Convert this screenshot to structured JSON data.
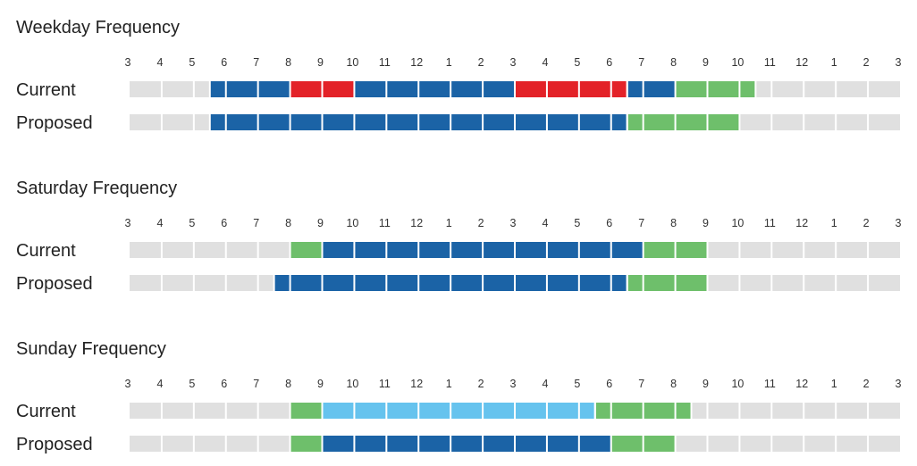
{
  "chart_data": {
    "type": "timeline",
    "axis": {
      "tick_labels": [
        "3",
        "4",
        "5",
        "6",
        "7",
        "8",
        "9",
        "10",
        "11",
        "12",
        "1",
        "2",
        "3",
        "4",
        "5",
        "6",
        "7",
        "8",
        "9",
        "10",
        "11",
        "12",
        "1",
        "2",
        "3"
      ],
      "start_hour": 3,
      "end_hour": 27
    },
    "legend": [
      {
        "color": "#e0e0e0",
        "key": "no-service"
      },
      {
        "color": "#1b63a6",
        "key": "frequent"
      },
      {
        "color": "#e32228",
        "key": "peak"
      },
      {
        "color": "#6ebf6b",
        "key": "less-frequent"
      },
      {
        "color": "#66c3ee",
        "key": "lighter-frequent"
      }
    ],
    "panels": [
      {
        "title": "Weekday Frequency",
        "rows": [
          {
            "label": "Current",
            "segments": [
              {
                "start": 5.5,
                "end": 8,
                "color": "#1b63a6"
              },
              {
                "start": 8,
                "end": 10,
                "color": "#e32228"
              },
              {
                "start": 10,
                "end": 15,
                "color": "#1b63a6"
              },
              {
                "start": 15,
                "end": 18.5,
                "color": "#e32228"
              },
              {
                "start": 18.5,
                "end": 20,
                "color": "#1b63a6"
              },
              {
                "start": 20,
                "end": 22.5,
                "color": "#6ebf6b"
              }
            ]
          },
          {
            "label": "Proposed",
            "segments": [
              {
                "start": 5.5,
                "end": 18.5,
                "color": "#1b63a6"
              },
              {
                "start": 18.5,
                "end": 22,
                "color": "#6ebf6b"
              }
            ]
          }
        ]
      },
      {
        "title": "Saturday Frequency",
        "rows": [
          {
            "label": "Current",
            "segments": [
              {
                "start": 8,
                "end": 9,
                "color": "#6ebf6b"
              },
              {
                "start": 9,
                "end": 19,
                "color": "#1b63a6"
              },
              {
                "start": 19,
                "end": 21,
                "color": "#6ebf6b"
              }
            ]
          },
          {
            "label": "Proposed",
            "segments": [
              {
                "start": 7.5,
                "end": 18.5,
                "color": "#1b63a6"
              },
              {
                "start": 18.5,
                "end": 21,
                "color": "#6ebf6b"
              }
            ]
          }
        ]
      },
      {
        "title": "Sunday Frequency",
        "rows": [
          {
            "label": "Current",
            "segments": [
              {
                "start": 8,
                "end": 9,
                "color": "#6ebf6b"
              },
              {
                "start": 9,
                "end": 17.5,
                "color": "#66c3ee"
              },
              {
                "start": 17.5,
                "end": 20.5,
                "color": "#6ebf6b"
              }
            ]
          },
          {
            "label": "Proposed",
            "segments": [
              {
                "start": 8,
                "end": 9,
                "color": "#6ebf6b"
              },
              {
                "start": 9,
                "end": 18,
                "color": "#1b63a6"
              },
              {
                "start": 18,
                "end": 20,
                "color": "#6ebf6b"
              }
            ]
          }
        ]
      }
    ]
  }
}
